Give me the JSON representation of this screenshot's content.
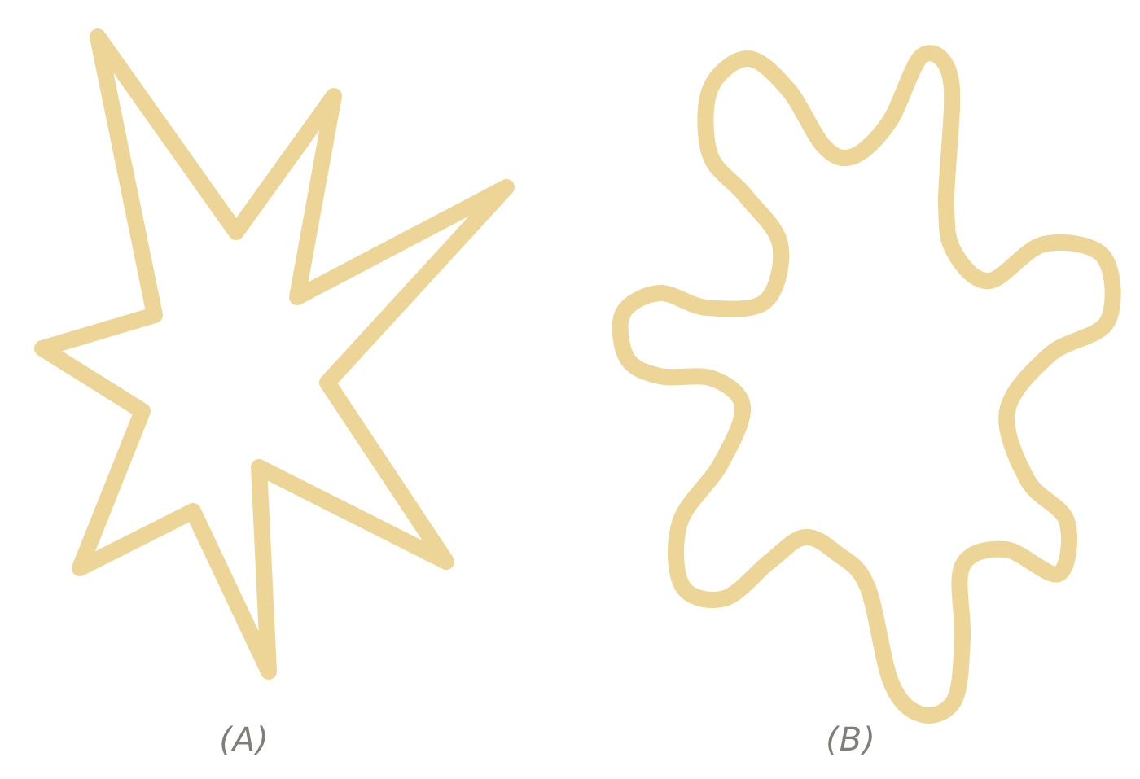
{
  "colors": {
    "shape_stroke": "#ecd596",
    "label_text": "#7f7f78",
    "background": "#ffffff"
  },
  "panels": [
    {
      "id": "A",
      "label": "(A)",
      "shape": "spiky-star-outline"
    },
    {
      "id": "B",
      "label": "(B)",
      "shape": "wavy-blob-outline"
    }
  ]
}
